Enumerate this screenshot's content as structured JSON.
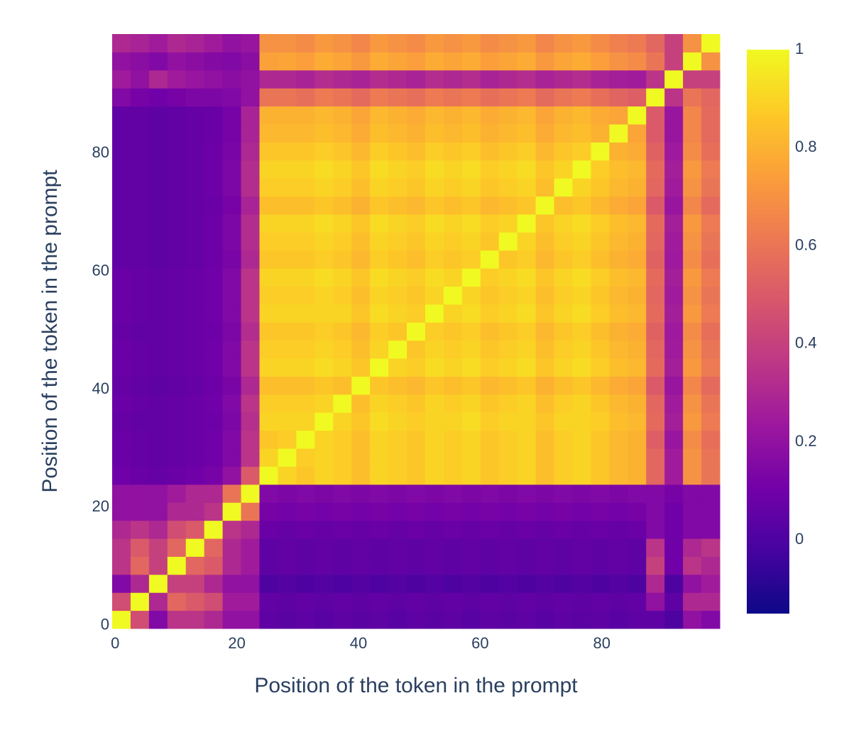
{
  "chart_data": {
    "type": "heatmap",
    "x_title": "Position of the token in the prompt",
    "y_title": "Position of the token in the prompt",
    "xlim": [
      -0.5,
      99.4
    ],
    "ylim": [
      -0.5,
      100.2
    ],
    "xticks": [
      0,
      20,
      40,
      60,
      80
    ],
    "yticks": [
      0,
      20,
      40,
      60,
      80
    ],
    "zlim": [
      -0.15,
      1
    ],
    "colorbar_ticks": [
      0,
      0.2,
      0.4,
      0.6,
      0.8,
      1
    ],
    "colorscale": [
      "#0d0887",
      "#46039f",
      "#7201a8",
      "#9c179e",
      "#bd3786",
      "#d8576b",
      "#ed7953",
      "#fb9f3a",
      "#fdca26",
      "#f0f921"
    ],
    "z": [
      [
        1,
        0.45,
        0.15,
        0.35,
        0.35,
        0.3,
        0.2,
        0.2,
        0.05,
        0.04,
        0.05,
        0.03,
        0.05,
        0.04,
        0.05,
        0.03,
        0.05,
        0.04,
        0.05,
        0.03,
        0.05,
        0.04,
        0.05,
        0.03,
        0.05,
        0.04,
        0.05,
        0.03,
        0.05,
        0.05,
        0,
        0.2,
        0.15
      ],
      [
        0.45,
        1,
        0.3,
        0.55,
        0.5,
        0.45,
        0.25,
        0.25,
        0.06,
        0.05,
        0.06,
        0.05,
        0.06,
        0.05,
        0.06,
        0.05,
        0.06,
        0.05,
        0.06,
        0.05,
        0.06,
        0.05,
        0.06,
        0.05,
        0.06,
        0.05,
        0.06,
        0.05,
        0.06,
        0.2,
        0.05,
        0.3,
        0.3
      ],
      [
        0.15,
        0.3,
        1,
        0.4,
        0.4,
        0.3,
        0.2,
        0.2,
        0,
        0.02,
        0,
        0.02,
        0,
        0.02,
        0,
        0.02,
        0,
        0.02,
        0,
        0.02,
        0,
        0.02,
        0,
        0.02,
        0,
        0.02,
        0,
        0.02,
        0,
        0.3,
        0,
        0.2,
        0.25
      ],
      [
        0.35,
        0.55,
        0.4,
        1,
        0.55,
        0.5,
        0.3,
        0.25,
        0.05,
        0.06,
        0.05,
        0.06,
        0.05,
        0.06,
        0.05,
        0.06,
        0.05,
        0.06,
        0.05,
        0.06,
        0.05,
        0.06,
        0.05,
        0.06,
        0.05,
        0.06,
        0.05,
        0.06,
        0.05,
        0.4,
        0.1,
        0.35,
        0.3
      ],
      [
        0.35,
        0.5,
        0.4,
        0.55,
        1,
        0.55,
        0.3,
        0.25,
        0.05,
        0.06,
        0.05,
        0.06,
        0.05,
        0.06,
        0.05,
        0.06,
        0.05,
        0.06,
        0.05,
        0.06,
        0.05,
        0.06,
        0.05,
        0.06,
        0.05,
        0.06,
        0.05,
        0.06,
        0.05,
        0.35,
        0.1,
        0.3,
        0.35
      ],
      [
        0.3,
        0.35,
        0.3,
        0.45,
        0.5,
        1,
        0.35,
        0.3,
        0.08,
        0.07,
        0.08,
        0.07,
        0.08,
        0.07,
        0.08,
        0.07,
        0.08,
        0.07,
        0.08,
        0.07,
        0.08,
        0.07,
        0.08,
        0.07,
        0.08,
        0.07,
        0.08,
        0.07,
        0.08,
        0.15,
        0.1,
        0.15,
        0.15
      ],
      [
        0.2,
        0.2,
        0.2,
        0.3,
        0.3,
        0.35,
        1,
        0.6,
        0.12,
        0.11,
        0.12,
        0.11,
        0.12,
        0.11,
        0.12,
        0.11,
        0.12,
        0.11,
        0.12,
        0.11,
        0.12,
        0.11,
        0.12,
        0.11,
        0.12,
        0.11,
        0.12,
        0.11,
        0.12,
        0.15,
        0.1,
        0.15,
        0.15
      ],
      [
        0.2,
        0.2,
        0.2,
        0.25,
        0.3,
        0.3,
        0.6,
        1,
        0.15,
        0.14,
        0.15,
        0.14,
        0.15,
        0.14,
        0.15,
        0.14,
        0.15,
        0.14,
        0.15,
        0.14,
        0.15,
        0.14,
        0.15,
        0.14,
        0.15,
        0.14,
        0.15,
        0.14,
        0.15,
        0.15,
        0.12,
        0.15,
        0.15
      ],
      [
        0.1,
        0.08,
        0.07,
        0.08,
        0.1,
        0.12,
        0.2,
        0.5,
        1,
        0.9,
        0.86,
        0.9,
        0.88,
        0.84,
        0.9,
        0.88,
        0.86,
        0.9,
        0.88,
        0.9,
        0.86,
        0.88,
        0.9,
        0.84,
        0.88,
        0.9,
        0.86,
        0.82,
        0.8,
        0.55,
        0.25,
        0.7,
        0.6
      ],
      [
        0.08,
        0.07,
        0.06,
        0.07,
        0.08,
        0.1,
        0.15,
        0.35,
        0.9,
        1,
        0.88,
        0.9,
        0.88,
        0.84,
        0.9,
        0.88,
        0.86,
        0.9,
        0.88,
        0.9,
        0.86,
        0.88,
        0.9,
        0.84,
        0.88,
        0.9,
        0.86,
        0.82,
        0.8,
        0.55,
        0.25,
        0.7,
        0.6
      ],
      [
        0.08,
        0.07,
        0.06,
        0.07,
        0.08,
        0.1,
        0.15,
        0.35,
        0.86,
        0.88,
        1,
        0.9,
        0.88,
        0.84,
        0.9,
        0.88,
        0.86,
        0.9,
        0.88,
        0.9,
        0.86,
        0.88,
        0.9,
        0.84,
        0.88,
        0.9,
        0.86,
        0.82,
        0.8,
        0.52,
        0.22,
        0.68,
        0.58
      ],
      [
        0.07,
        0.06,
        0.06,
        0.07,
        0.08,
        0.09,
        0.14,
        0.33,
        0.9,
        0.9,
        0.9,
        1,
        0.9,
        0.86,
        0.92,
        0.9,
        0.88,
        0.9,
        0.9,
        0.92,
        0.88,
        0.9,
        0.9,
        0.86,
        0.9,
        0.9,
        0.88,
        0.84,
        0.82,
        0.56,
        0.26,
        0.72,
        0.62
      ],
      [
        0.08,
        0.07,
        0.06,
        0.07,
        0.08,
        0.1,
        0.15,
        0.35,
        0.88,
        0.88,
        0.88,
        0.9,
        1,
        0.84,
        0.9,
        0.88,
        0.86,
        0.9,
        0.88,
        0.9,
        0.86,
        0.88,
        0.9,
        0.84,
        0.88,
        0.9,
        0.86,
        0.82,
        0.8,
        0.55,
        0.25,
        0.7,
        0.6
      ],
      [
        0.07,
        0.06,
        0.05,
        0.06,
        0.07,
        0.09,
        0.13,
        0.3,
        0.84,
        0.84,
        0.84,
        0.86,
        0.84,
        1,
        0.86,
        0.84,
        0.82,
        0.86,
        0.84,
        0.86,
        0.82,
        0.84,
        0.86,
        0.8,
        0.84,
        0.86,
        0.82,
        0.78,
        0.76,
        0.5,
        0.22,
        0.66,
        0.56
      ],
      [
        0.08,
        0.07,
        0.06,
        0.07,
        0.08,
        0.1,
        0.15,
        0.35,
        0.9,
        0.9,
        0.9,
        0.92,
        0.9,
        0.86,
        1,
        0.9,
        0.88,
        0.92,
        0.9,
        0.92,
        0.88,
        0.9,
        0.92,
        0.86,
        0.9,
        0.92,
        0.88,
        0.84,
        0.82,
        0.56,
        0.26,
        0.72,
        0.62
      ],
      [
        0.08,
        0.07,
        0.06,
        0.07,
        0.08,
        0.1,
        0.15,
        0.35,
        0.88,
        0.88,
        0.88,
        0.9,
        0.88,
        0.84,
        0.9,
        1,
        0.86,
        0.9,
        0.88,
        0.9,
        0.86,
        0.88,
        0.9,
        0.84,
        0.88,
        0.9,
        0.86,
        0.82,
        0.8,
        0.55,
        0.25,
        0.7,
        0.6
      ],
      [
        0.07,
        0.06,
        0.06,
        0.07,
        0.08,
        0.09,
        0.14,
        0.32,
        0.86,
        0.86,
        0.86,
        0.88,
        0.86,
        0.82,
        0.88,
        0.86,
        1,
        0.88,
        0.86,
        0.88,
        0.84,
        0.86,
        0.88,
        0.82,
        0.86,
        0.88,
        0.84,
        0.8,
        0.78,
        0.53,
        0.24,
        0.68,
        0.58
      ],
      [
        0.08,
        0.07,
        0.06,
        0.07,
        0.08,
        0.1,
        0.15,
        0.35,
        0.9,
        0.9,
        0.9,
        0.9,
        0.9,
        0.86,
        0.92,
        0.9,
        0.88,
        1,
        0.9,
        0.92,
        0.88,
        0.9,
        0.92,
        0.86,
        0.9,
        0.92,
        0.88,
        0.84,
        0.82,
        0.56,
        0.26,
        0.72,
        0.62
      ],
      [
        0.08,
        0.07,
        0.06,
        0.07,
        0.08,
        0.1,
        0.15,
        0.35,
        0.88,
        0.88,
        0.88,
        0.9,
        0.88,
        0.84,
        0.9,
        0.88,
        0.86,
        0.9,
        1,
        0.9,
        0.86,
        0.88,
        0.9,
        0.84,
        0.88,
        0.9,
        0.86,
        0.82,
        0.8,
        0.55,
        0.25,
        0.7,
        0.6
      ],
      [
        0.08,
        0.07,
        0.06,
        0.07,
        0.08,
        0.1,
        0.15,
        0.35,
        0.9,
        0.9,
        0.9,
        0.92,
        0.9,
        0.86,
        0.92,
        0.9,
        0.88,
        0.92,
        0.9,
        1,
        0.88,
        0.9,
        0.92,
        0.86,
        0.9,
        0.92,
        0.88,
        0.84,
        0.82,
        0.56,
        0.26,
        0.72,
        0.62
      ],
      [
        0.06,
        0.06,
        0.05,
        0.06,
        0.07,
        0.09,
        0.13,
        0.3,
        0.86,
        0.86,
        0.86,
        0.88,
        0.86,
        0.82,
        0.88,
        0.86,
        0.84,
        0.88,
        0.86,
        0.88,
        1,
        0.86,
        0.88,
        0.82,
        0.86,
        0.88,
        0.84,
        0.8,
        0.78,
        0.53,
        0.24,
        0.68,
        0.58
      ],
      [
        0.06,
        0.06,
        0.05,
        0.06,
        0.07,
        0.09,
        0.14,
        0.32,
        0.88,
        0.88,
        0.88,
        0.9,
        0.88,
        0.84,
        0.9,
        0.88,
        0.86,
        0.9,
        0.88,
        0.9,
        0.86,
        1,
        0.9,
        0.84,
        0.88,
        0.9,
        0.86,
        0.82,
        0.8,
        0.55,
        0.25,
        0.7,
        0.6
      ],
      [
        0.06,
        0.06,
        0.05,
        0.06,
        0.07,
        0.09,
        0.14,
        0.32,
        0.9,
        0.9,
        0.9,
        0.92,
        0.9,
        0.86,
        0.92,
        0.9,
        0.88,
        0.92,
        0.9,
        0.92,
        0.88,
        0.9,
        1,
        0.86,
        0.9,
        0.92,
        0.88,
        0.84,
        0.82,
        0.56,
        0.26,
        0.72,
        0.62
      ],
      [
        0.06,
        0.06,
        0.05,
        0.06,
        0.07,
        0.08,
        0.12,
        0.28,
        0.84,
        0.84,
        0.84,
        0.86,
        0.84,
        0.8,
        0.86,
        0.84,
        0.82,
        0.86,
        0.84,
        0.86,
        0.82,
        0.84,
        0.86,
        1,
        0.84,
        0.86,
        0.82,
        0.78,
        0.76,
        0.5,
        0.22,
        0.66,
        0.56
      ],
      [
        0.06,
        0.06,
        0.05,
        0.06,
        0.07,
        0.09,
        0.14,
        0.32,
        0.88,
        0.88,
        0.88,
        0.9,
        0.88,
        0.84,
        0.9,
        0.88,
        0.86,
        0.9,
        0.88,
        0.9,
        0.86,
        0.88,
        0.9,
        0.84,
        1,
        0.9,
        0.86,
        0.82,
        0.8,
        0.55,
        0.25,
        0.7,
        0.6
      ],
      [
        0.06,
        0.06,
        0.05,
        0.06,
        0.07,
        0.09,
        0.14,
        0.32,
        0.9,
        0.9,
        0.9,
        0.92,
        0.9,
        0.86,
        0.92,
        0.9,
        0.88,
        0.92,
        0.9,
        0.92,
        0.88,
        0.9,
        0.92,
        0.86,
        0.9,
        1,
        0.88,
        0.84,
        0.82,
        0.56,
        0.26,
        0.72,
        0.62
      ],
      [
        0.06,
        0.06,
        0.05,
        0.06,
        0.07,
        0.09,
        0.13,
        0.3,
        0.86,
        0.86,
        0.86,
        0.88,
        0.86,
        0.82,
        0.88,
        0.86,
        0.84,
        0.88,
        0.86,
        0.88,
        0.84,
        0.86,
        0.88,
        0.82,
        0.86,
        0.88,
        1,
        0.8,
        0.78,
        0.53,
        0.24,
        0.68,
        0.58
      ],
      [
        0.06,
        0.06,
        0.05,
        0.06,
        0.07,
        0.08,
        0.12,
        0.28,
        0.82,
        0.82,
        0.82,
        0.84,
        0.82,
        0.78,
        0.84,
        0.82,
        0.8,
        0.84,
        0.82,
        0.84,
        0.8,
        0.82,
        0.84,
        0.78,
        0.82,
        0.84,
        0.8,
        1,
        0.76,
        0.5,
        0.22,
        0.66,
        0.56
      ],
      [
        0.06,
        0.06,
        0.05,
        0.06,
        0.07,
        0.08,
        0.12,
        0.28,
        0.8,
        0.8,
        0.8,
        0.82,
        0.8,
        0.76,
        0.82,
        0.8,
        0.78,
        0.82,
        0.8,
        0.82,
        0.78,
        0.8,
        0.82,
        0.76,
        0.8,
        0.82,
        0.78,
        0.76,
        1,
        0.5,
        0.22,
        0.66,
        0.56
      ],
      [
        0.15,
        0.12,
        0.1,
        0.12,
        0.14,
        0.14,
        0.15,
        0.2,
        0.6,
        0.6,
        0.58,
        0.62,
        0.6,
        0.56,
        0.62,
        0.6,
        0.58,
        0.62,
        0.6,
        0.62,
        0.58,
        0.6,
        0.62,
        0.56,
        0.6,
        0.62,
        0.58,
        0.54,
        0.52,
        1,
        0.35,
        0.6,
        0.55
      ],
      [
        0.25,
        0.2,
        0.3,
        0.25,
        0.22,
        0.2,
        0.18,
        0.2,
        0.3,
        0.3,
        0.28,
        0.32,
        0.3,
        0.28,
        0.32,
        0.3,
        0.28,
        0.32,
        0.3,
        0.32,
        0.28,
        0.3,
        0.32,
        0.28,
        0.3,
        0.32,
        0.28,
        0.26,
        0.25,
        0.35,
        1,
        0.4,
        0.4
      ],
      [
        0.2,
        0.18,
        0.15,
        0.2,
        0.18,
        0.16,
        0.15,
        0.18,
        0.75,
        0.76,
        0.74,
        0.78,
        0.76,
        0.72,
        0.78,
        0.76,
        0.74,
        0.78,
        0.76,
        0.78,
        0.74,
        0.76,
        0.78,
        0.72,
        0.76,
        0.78,
        0.74,
        0.7,
        0.68,
        0.6,
        0.4,
        1,
        0.7
      ],
      [
        0.3,
        0.28,
        0.25,
        0.3,
        0.28,
        0.25,
        0.2,
        0.22,
        0.7,
        0.7,
        0.68,
        0.72,
        0.7,
        0.66,
        0.72,
        0.7,
        0.68,
        0.72,
        0.7,
        0.72,
        0.68,
        0.7,
        0.72,
        0.66,
        0.7,
        0.72,
        0.68,
        0.64,
        0.62,
        0.55,
        0.4,
        0.7,
        1
      ]
    ]
  }
}
